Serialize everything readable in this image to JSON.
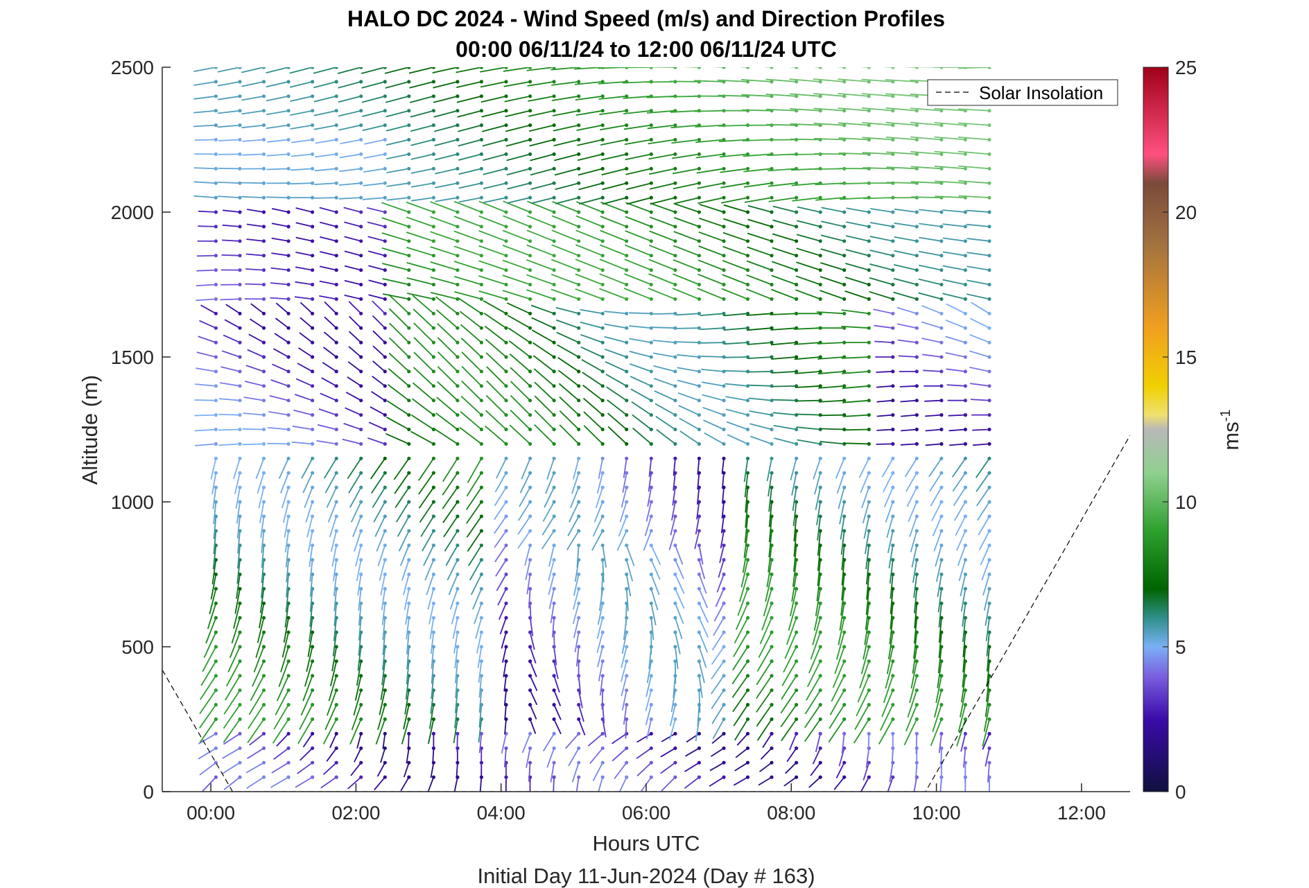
{
  "chart_data": {
    "type": "quiver",
    "title": "HALO DC 2024 - Wind Speed (m/s) and Direction Profiles",
    "subtitle": "00:00 06/11/24 to 12:00 06/11/24  UTC",
    "xlabel": "Hours UTC",
    "ylabel": "Altitude (m)",
    "footer": "Initial Day 11-Jun-2024 (Day # 163)",
    "xlim": [
      -0.67,
      12.67
    ],
    "ylim": [
      0,
      2500
    ],
    "x_ticks": [
      0,
      2,
      4,
      6,
      8,
      10,
      12
    ],
    "x_tick_labels": [
      "00:00",
      "02:00",
      "04:00",
      "06:00",
      "08:00",
      "10:00",
      "12:00"
    ],
    "y_ticks": [
      0,
      500,
      1000,
      1500,
      2000,
      2500
    ],
    "y_tick_labels": [
      "0",
      "500",
      "1000",
      "1500",
      "2000",
      "2500"
    ],
    "colorbar": {
      "label": "ms",
      "label_superscript": "-1",
      "range": [
        0,
        25
      ],
      "ticks": [
        0,
        5,
        10,
        15,
        20,
        25
      ],
      "tick_labels": [
        "0",
        "5",
        "10",
        "15",
        "20",
        "25"
      ],
      "stops": [
        {
          "v": 0,
          "c": "#101040"
        },
        {
          "v": 2.5,
          "c": "#3a0ba8"
        },
        {
          "v": 4,
          "c": "#7b60e0"
        },
        {
          "v": 5,
          "c": "#7ab0f5"
        },
        {
          "v": 6,
          "c": "#2f8f8a"
        },
        {
          "v": 7,
          "c": "#006400"
        },
        {
          "v": 9,
          "c": "#2ea02e"
        },
        {
          "v": 11,
          "c": "#8fd08f"
        },
        {
          "v": 12.5,
          "c": "#b8b8b8"
        },
        {
          "v": 13,
          "c": "#f0e070"
        },
        {
          "v": 14,
          "c": "#f0d000"
        },
        {
          "v": 16,
          "c": "#f0a020"
        },
        {
          "v": 19,
          "c": "#a07040"
        },
        {
          "v": 21,
          "c": "#7a4a3a"
        },
        {
          "v": 22,
          "c": "#ff5080"
        },
        {
          "v": 25,
          "c": "#a00018"
        }
      ]
    },
    "legend": {
      "label": "Solar Insolation",
      "style": "dashed",
      "position": "top-right"
    },
    "solar_insolation": {
      "x": [
        -0.67,
        0.3,
        9.85,
        12.67
      ],
      "y": [
        420,
        0,
        0,
        1230
      ]
    },
    "profile_times_h": [
      0.07,
      0.4,
      0.73,
      1.07,
      1.4,
      1.73,
      2.07,
      2.4,
      2.73,
      3.07,
      3.4,
      3.73,
      4.07,
      4.4,
      4.73,
      5.07,
      5.4,
      5.73,
      6.07,
      6.4,
      6.73,
      7.07,
      7.4,
      7.73,
      8.07,
      8.4,
      8.73,
      9.07,
      9.4,
      9.73,
      10.07,
      10.4,
      10.73
    ],
    "altitudes_m": [
      50,
      100,
      150,
      200,
      250,
      300,
      350,
      400,
      450,
      500,
      550,
      600,
      650,
      700,
      750,
      800,
      850,
      900,
      950,
      1000,
      1050,
      1100,
      1150,
      1200,
      1250,
      1300,
      1350,
      1400,
      1450,
      1500,
      1550,
      1600,
      1650,
      1700,
      1750,
      1800,
      1850,
      1900,
      1950,
      2000,
      2050,
      2100,
      2150,
      2200,
      2250,
      2300,
      2350,
      2400,
      2450,
      2500
    ],
    "speed_summary_ms": {
      "boundary_layer_night": [
        2,
        9
      ],
      "midlevel_night_1200_1700m": [
        2,
        6
      ],
      "upper_2000_2500m": [
        6,
        12
      ]
    }
  }
}
